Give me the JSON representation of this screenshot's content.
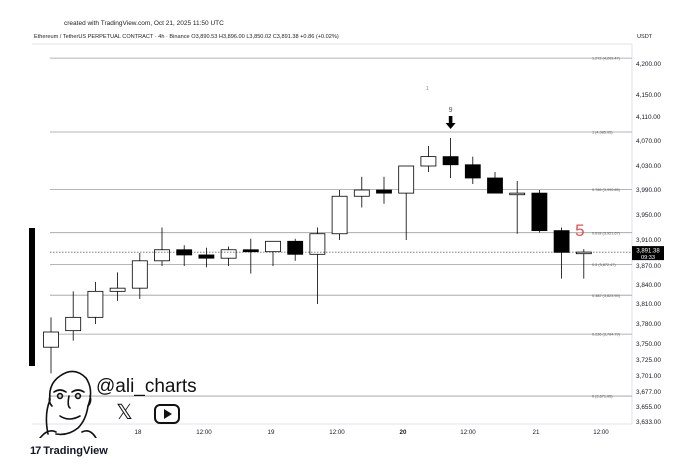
{
  "header": {
    "created_with": "created with TradingView.com, Oct 21, 2025 11:50 UTC",
    "symbol": "Ethereum / TetherUS PERPETUAL CONTRACT · 4h · Binance",
    "open": "O3,890.53",
    "high": "H3,896.00",
    "low": "L3,850.02",
    "close": "C3,891.38",
    "change": "+0.86 (+0.02%)",
    "currency": "USDT"
  },
  "price_axis": {
    "ticks": [
      "4,200.00",
      "4,150.00",
      "4,110.00",
      "4,070.00",
      "4,030.00",
      "3,990.00",
      "3,950.00",
      "3,910.00",
      "3,870.00",
      "3,840.00",
      "3,810.00",
      "3,780.00",
      "3,750.00",
      "3,725.00",
      "3,701.00",
      "3,677.00",
      "3,655.00",
      "3,633.00"
    ],
    "last_price": "3,891.38",
    "countdown": "09:33"
  },
  "time_axis": {
    "ticks": [
      "18",
      "12:00",
      "19",
      "12:00",
      "20",
      "12:00",
      "21",
      "12:00"
    ]
  },
  "fib_levels": [
    {
      "label": "1.272 (4,209.47)",
      "value": 4209.47
    },
    {
      "label": "1 (4,085.05)",
      "value": 4085.05
    },
    {
      "label": "0.786 (3,990.65)",
      "value": 3990.65
    },
    {
      "label": "0.618 (3,921.67)",
      "value": 3921.67
    },
    {
      "label": "0.5 (3,872.47)",
      "value": 3872.47
    },
    {
      "label": "0.382 (3,823.95)",
      "value": 3823.95
    },
    {
      "label": "0.236 (3,764.79)",
      "value": 3764.79
    },
    {
      "label": "0 (3,671.05)",
      "value": 3671.05
    }
  ],
  "annotations": {
    "td_count_nine": "9",
    "td_count_five": "5",
    "td_count_one": "1"
  },
  "watermark": {
    "handle": "@ali_charts"
  },
  "branding": {
    "logo_text": "TradingView",
    "logo_mark": "17"
  },
  "colors": {
    "bull_fill": "#ffffff",
    "bear_fill": "#000000",
    "candle_outline": "#000000",
    "fib_line": "#9e9e9e",
    "td_five": "#e05252"
  },
  "chart_data": {
    "type": "candlestick",
    "timeframe": "4h",
    "x_labels": [
      "18",
      "12:00",
      "19",
      "12:00",
      "20",
      "12:00",
      "21",
      "12:00"
    ],
    "candles": [
      {
        "o": 3745,
        "h": 3790,
        "l": 3705,
        "c": 3768
      },
      {
        "o": 3770,
        "h": 3830,
        "l": 3755,
        "c": 3790
      },
      {
        "o": 3790,
        "h": 3845,
        "l": 3780,
        "c": 3830
      },
      {
        "o": 3830,
        "h": 3860,
        "l": 3815,
        "c": 3835
      },
      {
        "o": 3835,
        "h": 3890,
        "l": 3818,
        "c": 3878
      },
      {
        "o": 3878,
        "h": 3930,
        "l": 3870,
        "c": 3895
      },
      {
        "o": 3895,
        "h": 3902,
        "l": 3870,
        "c": 3887
      },
      {
        "o": 3887,
        "h": 3898,
        "l": 3868,
        "c": 3882
      },
      {
        "o": 3882,
        "h": 3900,
        "l": 3870,
        "c": 3895
      },
      {
        "o": 3895,
        "h": 3912,
        "l": 3858,
        "c": 3892
      },
      {
        "o": 3892,
        "h": 3908,
        "l": 3870,
        "c": 3908
      },
      {
        "o": 3908,
        "h": 3912,
        "l": 3878,
        "c": 3888
      },
      {
        "o": 3888,
        "h": 3930,
        "l": 3810,
        "c": 3920
      },
      {
        "o": 3920,
        "h": 3990,
        "l": 3910,
        "c": 3980
      },
      {
        "o": 3980,
        "h": 4012,
        "l": 3962,
        "c": 3990
      },
      {
        "o": 3990,
        "h": 4012,
        "l": 3968,
        "c": 3985
      },
      {
        "o": 3985,
        "h": 4030,
        "l": 3910,
        "c": 4030
      },
      {
        "o": 4030,
        "h": 4062,
        "l": 4020,
        "c": 4045
      },
      {
        "o": 4045,
        "h": 4075,
        "l": 4010,
        "c": 4032
      },
      {
        "o": 4032,
        "h": 4045,
        "l": 4000,
        "c": 4010
      },
      {
        "o": 4010,
        "h": 4020,
        "l": 3985,
        "c": 3985
      },
      {
        "o": 3985,
        "h": 4005,
        "l": 3920,
        "c": 3985
      },
      {
        "o": 3985,
        "h": 3990,
        "l": 3922,
        "c": 3925
      },
      {
        "o": 3925,
        "h": 3930,
        "l": 3850,
        "c": 3891
      },
      {
        "o": 3890.53,
        "h": 3896,
        "l": 3850.02,
        "c": 3891.38
      }
    ]
  }
}
